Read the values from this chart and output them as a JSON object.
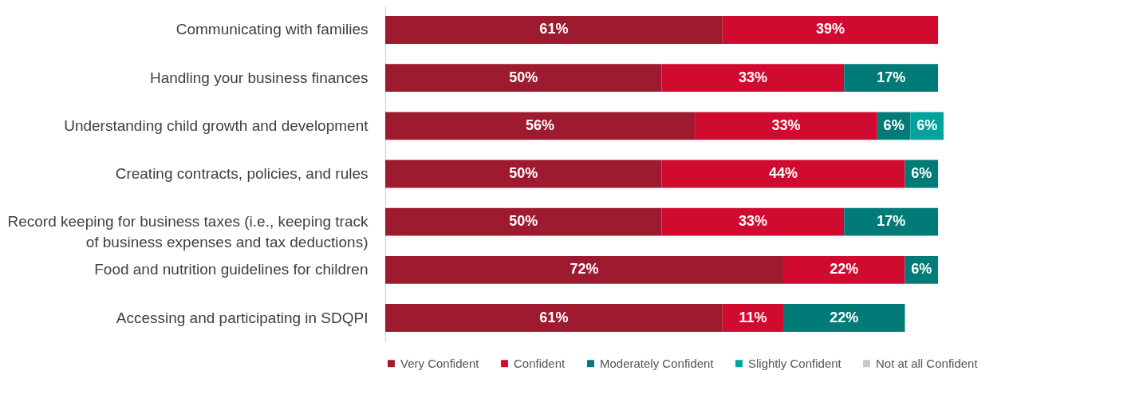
{
  "chart_data": {
    "type": "bar",
    "orientation": "horizontal",
    "stacked": true,
    "legend": "bottom",
    "tick_labels": "y",
    "categories": [
      "Communicating with families",
      "Handling your business finances",
      "Understanding child growth and development",
      "Creating contracts, policies, and rules",
      "Record keeping for business taxes (i.e., keeping track\nof business expenses and tax deductions)",
      "Food and nutrition guidelines for children",
      "Accessing and participating in SDQPI"
    ],
    "series": [
      {
        "name": "Very Confident",
        "color": "#9e1a2e",
        "values": [
          61,
          50,
          56,
          50,
          50,
          72,
          61
        ],
        "value_labels": [
          "61%",
          "50%",
          "56%",
          "50%",
          "50%",
          "72%",
          "61%"
        ]
      },
      {
        "name": "Confident",
        "color": "#d10a30",
        "values": [
          39,
          33,
          33,
          44,
          33,
          22,
          11
        ],
        "value_labels": [
          "39%",
          "33%",
          "33%",
          "44%",
          "33%",
          "22%",
          "11%"
        ]
      },
      {
        "name": "Moderately Confident",
        "color": "#007b78",
        "values": [
          null,
          17,
          6,
          6,
          17,
          6,
          22
        ],
        "value_labels": [
          null,
          "17%",
          "6%",
          "6%",
          "17%",
          "6%",
          "22%"
        ]
      },
      {
        "name": "Slightly Confident",
        "color": "#00a39c",
        "values": [
          null,
          null,
          6,
          null,
          null,
          null,
          null
        ],
        "value_labels": [
          null,
          null,
          "6%",
          null,
          null,
          null,
          null
        ]
      },
      {
        "name": "Not at all Confident",
        "color": "#c8c8c8",
        "values": [
          null,
          null,
          null,
          null,
          null,
          null,
          null
        ]
      }
    ]
  }
}
